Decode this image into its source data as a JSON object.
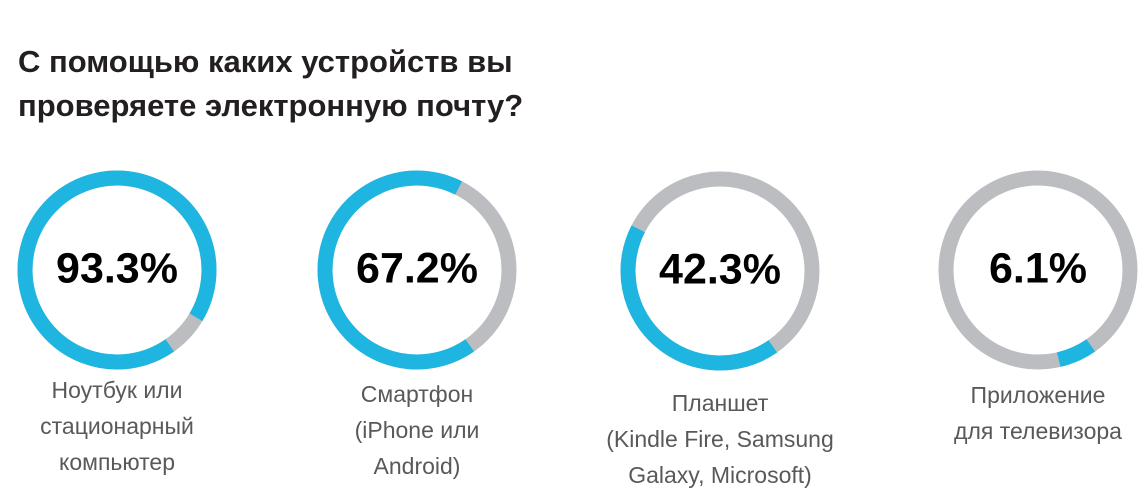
{
  "title_lines": [
    "С помощью каких устройств вы",
    "проверяете электронную почту?"
  ],
  "colors": {
    "accent": "#1eb5e1",
    "track": "#bcbdc1",
    "value_text": "#000000",
    "label_text": "#58595b",
    "title_text": "#231f20"
  },
  "chart_data": {
    "type": "pie",
    "title": "С помощью каких устройств вы проверяете электронную почту?",
    "unit": "%",
    "items": [
      {
        "value": 93.3,
        "value_label": "93.3%",
        "label_lines": [
          "Ноутбук или",
          "стационарный",
          "компьютер"
        ]
      },
      {
        "value": 67.2,
        "value_label": "67.2%",
        "label_lines": [
          "Смартфон",
          "(iPhone или",
          "Android)"
        ]
      },
      {
        "value": 42.3,
        "value_label": "42.3%",
        "label_lines": [
          "Планшет",
          "(Kindle Fire, Samsung",
          "Galaxy, Microsoft)"
        ]
      },
      {
        "value": 6.1,
        "value_label": "6.1%",
        "label_lines": [
          "Приложение",
          "для телевизора"
        ]
      }
    ]
  }
}
